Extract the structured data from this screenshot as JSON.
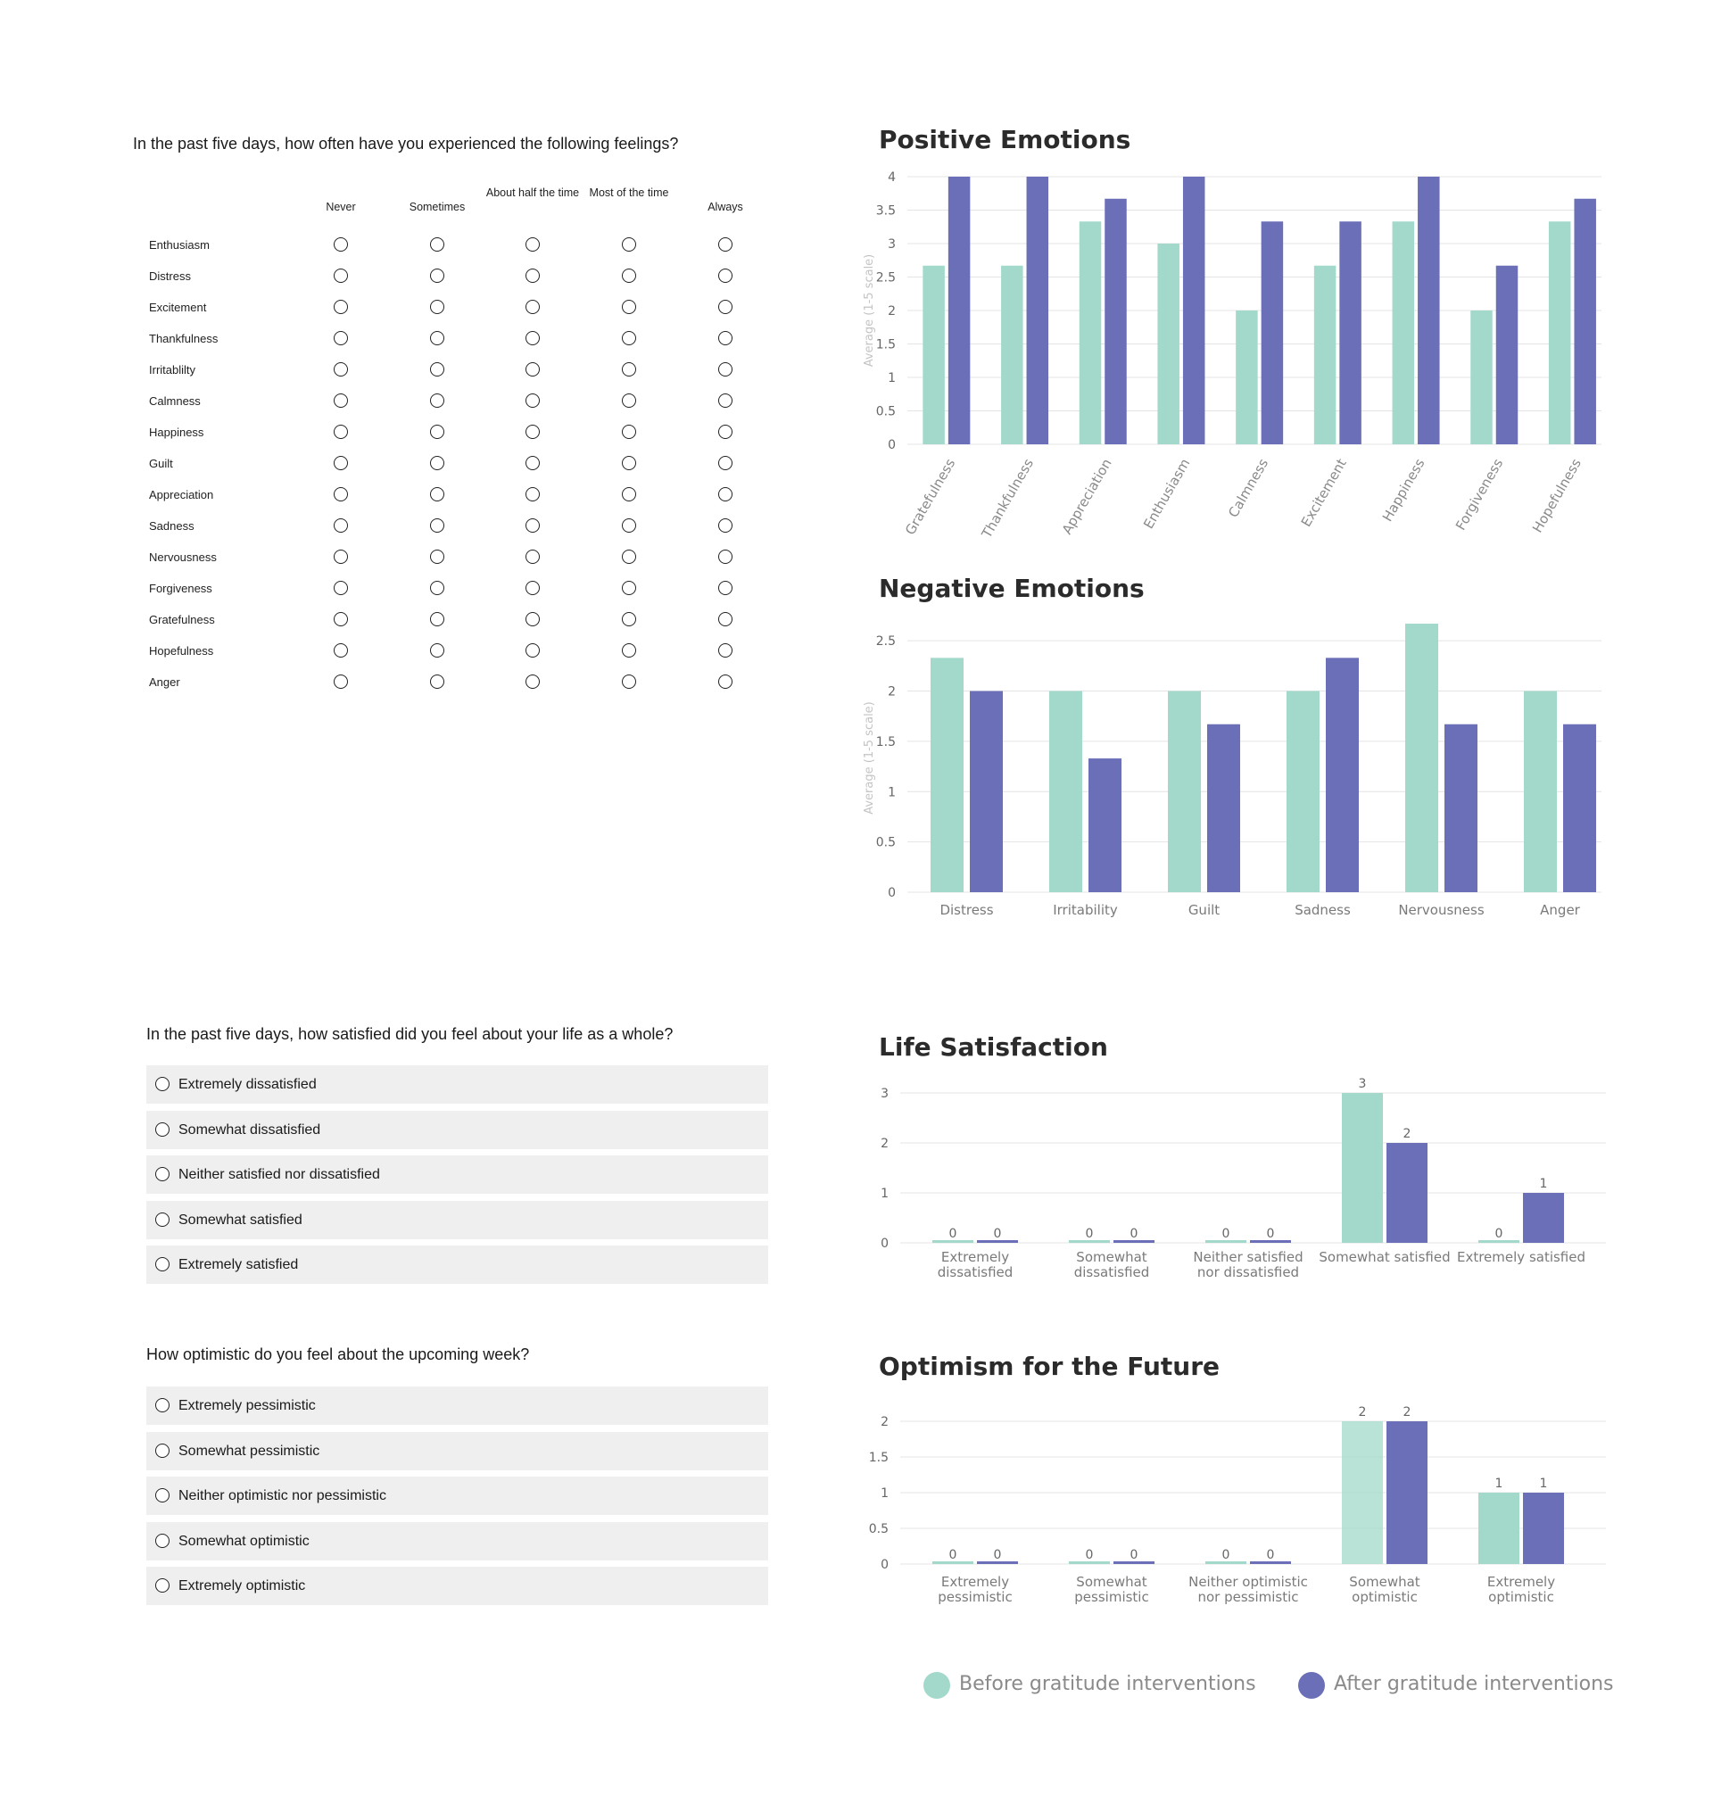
{
  "colors": {
    "before": "#a3d9cb",
    "after": "#6b6fb7",
    "grid": "#e4e4e4",
    "axis_text": "#7a7a7a"
  },
  "feelings_question": {
    "prompt": "In the past five days, how often have you experienced the following feelings?",
    "columns": [
      "Never",
      "Sometimes",
      "About half the time",
      "Most of the time",
      "Always"
    ],
    "rows": [
      "Enthusiasm",
      "Distress",
      "Excitement",
      "Thankfulness",
      "Irritablilty",
      "Calmness",
      "Happiness",
      "Guilt",
      "Appreciation",
      "Sadness",
      "Nervousness",
      "Forgiveness",
      "Gratefulness",
      "Hopefulness",
      "Anger"
    ]
  },
  "life_question": {
    "prompt": "In the past five days, how satisfied did you feel about your life as a whole?",
    "options": [
      "Extremely dissatisfied",
      "Somewhat dissatisfied",
      "Neither satisfied nor dissatisfied",
      "Somewhat satisfied",
      "Extremely satisfied"
    ]
  },
  "optimism_question": {
    "prompt": "How optimistic do you feel about the upcoming week?",
    "options": [
      "Extremely pessimistic",
      "Somewhat pessimistic",
      "Neither optimistic nor pessimistic",
      "Somewhat optimistic",
      "Extremely optimistic"
    ]
  },
  "legend": {
    "before": "Before gratitude interventions",
    "after": "After gratitude interventions"
  },
  "chart_data": [
    {
      "type": "bar",
      "title": "Positive Emotions",
      "ylabel": "Average (1-5 scale)",
      "ylim": [
        0,
        4
      ],
      "yticks": [
        0,
        0.5,
        1,
        1.5,
        2,
        2.5,
        3,
        3.5,
        4
      ],
      "categories": [
        "Gratefulness",
        "Thankfulness",
        "Appreciation",
        "Enthusiasm",
        "Calmness",
        "Excitement",
        "Happiness",
        "Forgiveness",
        "Hopefulness"
      ],
      "rotate_labels": true,
      "series": [
        {
          "name": "Before gratitude interventions",
          "values": [
            2.67,
            2.67,
            3.33,
            3,
            2,
            2.67,
            3.33,
            2,
            3.33
          ]
        },
        {
          "name": "After gratitude interventions",
          "values": [
            4,
            4,
            3.67,
            4,
            3.33,
            3.33,
            4,
            2.67,
            3.67
          ]
        }
      ],
      "grid": true
    },
    {
      "type": "bar",
      "title": "Negative Emotions",
      "ylabel": "Average (1-5 scale)",
      "ylim": [
        0,
        2.67
      ],
      "yticks": [
        0,
        0.5,
        1,
        1.5,
        2,
        2.5
      ],
      "categories": [
        "Distress",
        "Irritability",
        "Guilt",
        "Sadness",
        "Nervousness",
        "Anger"
      ],
      "series": [
        {
          "name": "Before gratitude interventions",
          "values": [
            2.33,
            2,
            2,
            2,
            2.67,
            2
          ]
        },
        {
          "name": "After gratitude interventions",
          "values": [
            2,
            1.33,
            1.67,
            2.33,
            1.67,
            1.67
          ]
        }
      ],
      "grid": true
    },
    {
      "type": "bar",
      "title": "Life Satisfaction",
      "ylim": [
        0,
        3
      ],
      "yticks": [
        0,
        1,
        2,
        3
      ],
      "categories": [
        [
          "Extremely",
          "dissatisfied"
        ],
        [
          "Somewhat",
          "dissatisfied"
        ],
        [
          "Neither satisfied",
          "nor dissatisfied"
        ],
        [
          "Somewhat satisfied"
        ],
        [
          "Extremely satisfied"
        ]
      ],
      "series": [
        {
          "name": "Before gratitude interventions",
          "values": [
            0,
            0,
            0,
            3,
            0
          ]
        },
        {
          "name": "After gratitude interventions",
          "values": [
            0,
            0,
            0,
            2,
            1
          ]
        }
      ],
      "data_labels": true,
      "grid": true
    },
    {
      "type": "bar",
      "title": "Optimism for the Future",
      "ylim": [
        0,
        2
      ],
      "yticks": [
        0,
        0.5,
        1,
        1.5,
        2
      ],
      "categories": [
        [
          "Extremely",
          "pessimistic"
        ],
        [
          "Somewhat",
          "pessimistic"
        ],
        [
          "Neither optimistic",
          "nor pessimistic"
        ],
        [
          "Somewhat",
          "optimistic"
        ],
        [
          "Extremely",
          "optimistic"
        ]
      ],
      "series": [
        {
          "name": "Before gratitude interventions",
          "values": [
            0,
            0,
            0,
            2,
            1
          ]
        },
        {
          "name": "After gratitude interventions",
          "values": [
            0,
            0,
            0,
            2,
            1
          ]
        }
      ],
      "data_labels": true,
      "grid": true
    }
  ]
}
